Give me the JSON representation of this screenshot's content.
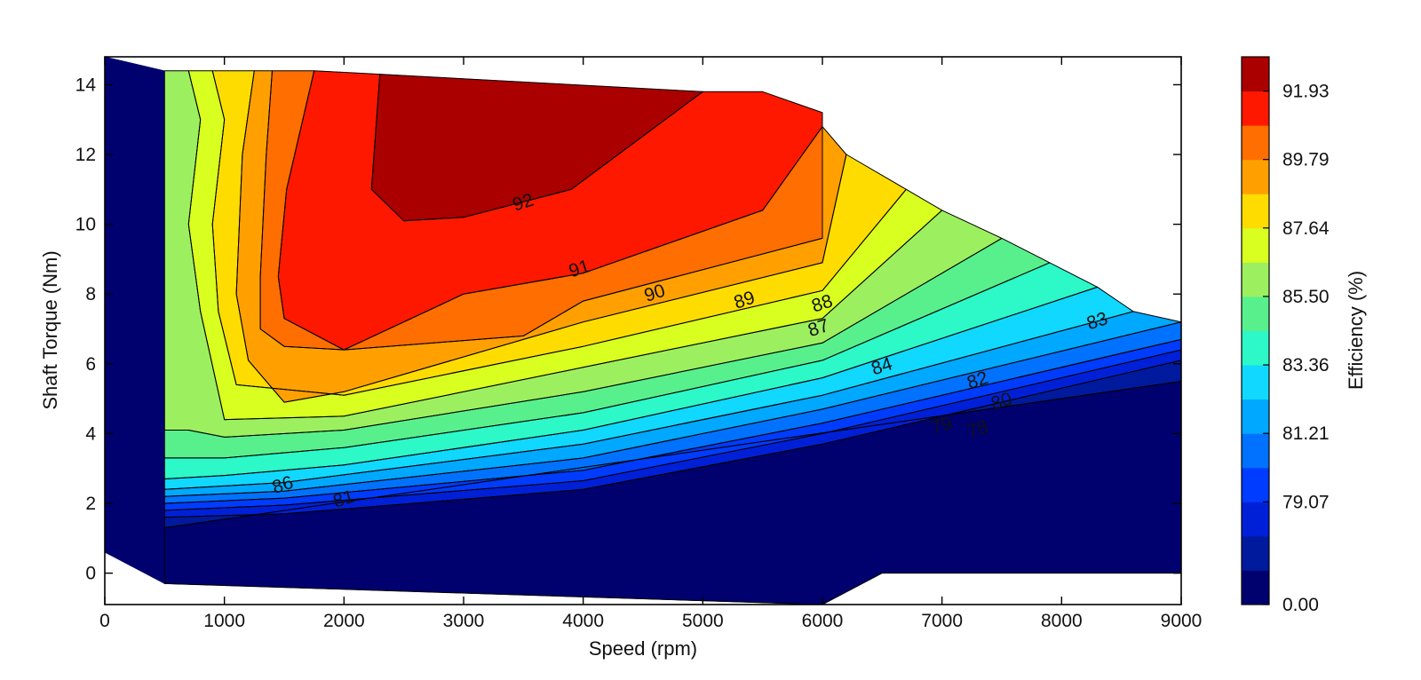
{
  "chart_data": {
    "type": "contour",
    "xlabel": "Speed  (rpm)",
    "ylabel": "Shaft Torque  (Nm)",
    "colorbar_label": "Efficiency (%)",
    "xlim": [
      0,
      9000
    ],
    "ylim": [
      -0.9,
      14.8
    ],
    "x_ticks": [
      0,
      1000,
      2000,
      3000,
      4000,
      5000,
      6000,
      7000,
      8000,
      9000
    ],
    "y_ticks": [
      0,
      2,
      4,
      6,
      8,
      10,
      12,
      14
    ],
    "x_tick_labels": [
      "0",
      "1000",
      "2000",
      "3000",
      "4000",
      "5000",
      "6000",
      "7000",
      "8000",
      "9000"
    ],
    "y_tick_labels": [
      "0",
      "2",
      "4",
      "6",
      "8",
      "10",
      "12",
      "14"
    ],
    "colorbar_tick_labels": [
      "91.93",
      "89.79",
      "87.64",
      "85.50",
      "83.36",
      "81.21",
      "79.07",
      "0.00"
    ],
    "colorbar_colors": [
      "#00006e",
      "#001a9e",
      "#0020d8",
      "#003cff",
      "#0072ff",
      "#00a8ff",
      "#10d8ff",
      "#2cf8c8",
      "#58f08c",
      "#9cf060",
      "#d8ff20",
      "#ffdc00",
      "#ffa000",
      "#ff6e00",
      "#ff1800",
      "#aa0000"
    ],
    "efficiency_bands": [
      {
        "level": 0,
        "color": "#00006e",
        "polygon": [
          [
            0,
            14.8
          ],
          [
            500,
            14.4
          ],
          [
            500,
            1.3
          ],
          [
            6000,
            3.0
          ],
          [
            6000,
            -0.9
          ],
          [
            500,
            -0.3
          ],
          [
            0,
            0.6
          ]
        ]
      },
      {
        "level": 76,
        "color": "#00006e",
        "polygon": [
          [
            500,
            1.3
          ],
          [
            9000,
            5.5
          ],
          [
            9000,
            0
          ],
          [
            6500,
            0
          ],
          [
            6000,
            -0.9
          ],
          [
            500,
            -0.3
          ]
        ]
      },
      {
        "level": 77,
        "color": "#001a9e",
        "polygon": [
          [
            500,
            1.6
          ],
          [
            1500,
            1.7
          ],
          [
            4000,
            2.4
          ],
          [
            6000,
            3.7
          ],
          [
            9000,
            6.1
          ],
          [
            9000,
            5.5
          ],
          [
            500,
            1.3
          ]
        ]
      },
      {
        "level": 78,
        "color": "#0020d8",
        "polygon": [
          [
            500,
            1.8
          ],
          [
            1500,
            1.95
          ],
          [
            4000,
            2.65
          ],
          [
            6000,
            4.0
          ],
          [
            9000,
            6.4
          ],
          [
            9000,
            6.1
          ],
          [
            6000,
            3.7
          ],
          [
            4000,
            2.4
          ],
          [
            1500,
            1.7
          ],
          [
            500,
            1.6
          ]
        ]
      },
      {
        "level": 79,
        "color": "#003cff",
        "polygon": [
          [
            500,
            2.0
          ],
          [
            1500,
            2.15
          ],
          [
            4000,
            2.95
          ],
          [
            6000,
            4.3
          ],
          [
            9000,
            6.7
          ],
          [
            9000,
            6.4
          ],
          [
            6000,
            4.0
          ],
          [
            4000,
            2.65
          ],
          [
            1500,
            1.95
          ],
          [
            500,
            1.8
          ]
        ]
      },
      {
        "level": 80,
        "color": "#0072ff",
        "polygon": [
          [
            500,
            2.2
          ],
          [
            1500,
            2.35
          ],
          [
            4000,
            3.3
          ],
          [
            6000,
            4.7
          ],
          [
            9000,
            7.2
          ],
          [
            9000,
            6.7
          ],
          [
            6000,
            4.3
          ],
          [
            4000,
            2.95
          ],
          [
            1500,
            2.15
          ],
          [
            500,
            2.0
          ]
        ]
      },
      {
        "level": 81,
        "color": "#00a8ff",
        "polygon": [
          [
            500,
            2.4
          ],
          [
            1500,
            2.6
          ],
          [
            4000,
            3.7
          ],
          [
            6000,
            5.1
          ],
          [
            8600,
            7.5
          ],
          [
            9000,
            7.2
          ],
          [
            6000,
            4.7
          ],
          [
            4000,
            3.3
          ],
          [
            1500,
            2.35
          ],
          [
            500,
            2.2
          ]
        ]
      },
      {
        "level": 82,
        "color": "#10d8ff",
        "polygon": [
          [
            500,
            2.7
          ],
          [
            1000,
            2.8
          ],
          [
            2000,
            3.1
          ],
          [
            4000,
            4.1
          ],
          [
            6000,
            5.6
          ],
          [
            8300,
            8.2
          ],
          [
            8600,
            7.5
          ],
          [
            6000,
            5.1
          ],
          [
            4000,
            3.7
          ],
          [
            1500,
            2.6
          ],
          [
            500,
            2.4
          ]
        ]
      },
      {
        "level": 83,
        "color": "#2cf8c8",
        "polygon": [
          [
            500,
            3.3
          ],
          [
            1000,
            3.3
          ],
          [
            2000,
            3.6
          ],
          [
            4000,
            4.6
          ],
          [
            6000,
            6.1
          ],
          [
            7900,
            8.9
          ],
          [
            8300,
            8.2
          ],
          [
            6000,
            5.6
          ],
          [
            4000,
            4.1
          ],
          [
            2000,
            3.1
          ],
          [
            1000,
            2.8
          ],
          [
            500,
            2.7
          ]
        ]
      },
      {
        "level": 84,
        "color": "#58f08c",
        "polygon": [
          [
            500,
            4.1
          ],
          [
            700,
            4.1
          ],
          [
            1000,
            3.9
          ],
          [
            2000,
            4.1
          ],
          [
            4000,
            5.2
          ],
          [
            6000,
            6.6
          ],
          [
            7500,
            9.6
          ],
          [
            7900,
            8.9
          ],
          [
            6000,
            6.1
          ],
          [
            4000,
            4.6
          ],
          [
            2000,
            3.6
          ],
          [
            1000,
            3.3
          ],
          [
            500,
            3.3
          ]
        ]
      },
      {
        "level": 85,
        "color": "#9cf060",
        "polygon": [
          [
            500,
            14.4
          ],
          [
            700,
            14.4
          ],
          [
            800,
            13.0
          ],
          [
            700,
            10.0
          ],
          [
            800,
            7.5
          ],
          [
            1000,
            4.4
          ],
          [
            2000,
            4.5
          ],
          [
            4000,
            5.9
          ],
          [
            6000,
            7.3
          ],
          [
            7000,
            10.4
          ],
          [
            7500,
            9.6
          ],
          [
            6000,
            6.6
          ],
          [
            4000,
            5.2
          ],
          [
            2000,
            4.1
          ],
          [
            1000,
            3.9
          ],
          [
            700,
            4.1
          ],
          [
            500,
            4.1
          ]
        ]
      },
      {
        "level": 86,
        "color": "#d8ff20",
        "polygon": [
          [
            700,
            14.4
          ],
          [
            900,
            14.4
          ],
          [
            1000,
            13.0
          ],
          [
            900,
            10.0
          ],
          [
            950,
            7.5
          ],
          [
            1100,
            5.4
          ],
          [
            2000,
            5.1
          ],
          [
            4000,
            6.5
          ],
          [
            6000,
            8.1
          ],
          [
            6700,
            11.0
          ],
          [
            7000,
            10.4
          ],
          [
            6000,
            7.3
          ],
          [
            4000,
            5.9
          ],
          [
            2000,
            4.5
          ],
          [
            1000,
            4.4
          ],
          [
            800,
            7.5
          ],
          [
            700,
            10.0
          ],
          [
            800,
            13.0
          ]
        ]
      },
      {
        "level": 87,
        "color": "#ffdc00",
        "polygon": [
          [
            900,
            14.4
          ],
          [
            1250,
            14.4
          ],
          [
            1150,
            12.0
          ],
          [
            1100,
            8.0
          ],
          [
            1200,
            6.1
          ],
          [
            1500,
            4.9
          ],
          [
            2000,
            5.2
          ],
          [
            4000,
            7.2
          ],
          [
            6000,
            8.9
          ],
          [
            6200,
            12.0
          ],
          [
            6700,
            11.0
          ],
          [
            6000,
            8.1
          ],
          [
            4000,
            6.5
          ],
          [
            2000,
            5.1
          ],
          [
            1100,
            5.4
          ],
          [
            950,
            7.5
          ],
          [
            900,
            10.0
          ],
          [
            1000,
            13.0
          ]
        ]
      },
      {
        "level": 88,
        "color": "#ffa000",
        "polygon": [
          [
            1250,
            14.4
          ],
          [
            1400,
            14.4
          ],
          [
            1350,
            12.0
          ],
          [
            1300,
            8.5
          ],
          [
            1300,
            7.0
          ],
          [
            1500,
            6.5
          ],
          [
            2000,
            6.4
          ],
          [
            3500,
            6.8
          ],
          [
            4000,
            7.8
          ],
          [
            6000,
            9.6
          ],
          [
            6000,
            12.8
          ],
          [
            6200,
            12.0
          ],
          [
            6000,
            8.9
          ],
          [
            4000,
            7.2
          ],
          [
            2000,
            5.2
          ],
          [
            1500,
            4.9
          ],
          [
            1200,
            6.1
          ],
          [
            1100,
            8.0
          ],
          [
            1150,
            12.0
          ]
        ]
      },
      {
        "level": 89,
        "color": "#ff6e00",
        "polygon": [
          [
            1400,
            14.4
          ],
          [
            1750,
            14.4
          ],
          [
            1520,
            11.0
          ],
          [
            1450,
            8.5
          ],
          [
            1500,
            7.3
          ],
          [
            2000,
            6.4
          ],
          [
            3000,
            8.0
          ],
          [
            4000,
            8.6
          ],
          [
            5500,
            10.4
          ],
          [
            6000,
            12.8
          ],
          [
            6000,
            9.6
          ],
          [
            4000,
            7.8
          ],
          [
            3500,
            6.8
          ],
          [
            2000,
            6.4
          ],
          [
            1500,
            6.5
          ],
          [
            1300,
            7.0
          ],
          [
            1300,
            8.5
          ],
          [
            1350,
            12.0
          ]
        ]
      },
      {
        "level": 90,
        "color": "#ff1800",
        "polygon": [
          [
            1750,
            14.4
          ],
          [
            2300,
            14.3
          ],
          [
            2230,
            11.0
          ],
          [
            2500,
            10.1
          ],
          [
            3000,
            10.2
          ],
          [
            3900,
            11.0
          ],
          [
            5000,
            13.8
          ],
          [
            5500,
            13.8
          ],
          [
            6000,
            13.2
          ],
          [
            6000,
            12.8
          ],
          [
            5500,
            10.4
          ],
          [
            4000,
            8.6
          ],
          [
            3000,
            8.0
          ],
          [
            2000,
            6.4
          ],
          [
            1500,
            7.3
          ],
          [
            1450,
            8.5
          ],
          [
            1520,
            11.0
          ]
        ]
      },
      {
        "level": 92,
        "color": "#aa0000",
        "polygon": [
          [
            2300,
            14.3
          ],
          [
            5000,
            13.8
          ],
          [
            3900,
            11.0
          ],
          [
            3000,
            10.2
          ],
          [
            2500,
            10.1
          ],
          [
            2230,
            11.0
          ]
        ]
      }
    ],
    "contour_labels": [
      {
        "text": "92",
        "x": 3500,
        "y": 10.6
      },
      {
        "text": "91",
        "x": 3970,
        "y": 8.7
      },
      {
        "text": "90",
        "x": 4600,
        "y": 8.0
      },
      {
        "text": "89",
        "x": 5350,
        "y": 7.8
      },
      {
        "text": "88",
        "x": 6000,
        "y": 7.7
      },
      {
        "text": "87",
        "x": 5970,
        "y": 7.0
      },
      {
        "text": "86",
        "x": 1490,
        "y": 2.5
      },
      {
        "text": "84",
        "x": 6500,
        "y": 5.9
      },
      {
        "text": "83",
        "x": 8300,
        "y": 7.2
      },
      {
        "text": "82",
        "x": 7300,
        "y": 5.5
      },
      {
        "text": "81",
        "x": 2000,
        "y": 2.1
      },
      {
        "text": "80",
        "x": 7500,
        "y": 4.9
      },
      {
        "text": "79",
        "x": 7000,
        "y": 4.2
      },
      {
        "text": "78",
        "x": 7300,
        "y": 4.1
      }
    ]
  }
}
